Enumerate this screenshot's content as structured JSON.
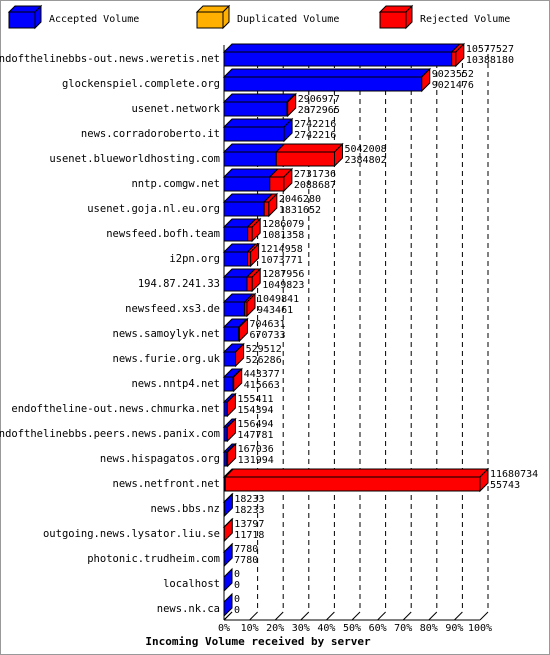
{
  "chart_data": {
    "type": "bar3d",
    "orientation": "horizontal",
    "x_label": "Incoming Volume received by server",
    "categories": [
      "endofthelinebbs-out.news.weretis.net",
      "glockenspiel.complete.org",
      "usenet.network",
      "news.corradoroberto.it",
      "usenet.blueworldhosting.com",
      "nntp.comgw.net",
      "usenet.goja.nl.eu.org",
      "newsfeed.bofh.team",
      "i2pn.org",
      "194.87.241.33",
      "newsfeed.xs3.de",
      "news.samoylyk.net",
      "news.furie.org.uk",
      "news.nntp4.net",
      "endoftheline-out.news.chmurka.net",
      "endofthelinebbs.peers.news.panix.com",
      "news.hispagatos.org",
      "news.netfront.net",
      "news.bbs.nz",
      "outgoing.news.lysator.liu.se",
      "photonic.trudheim.com",
      "localhost",
      "news.nk.ca"
    ],
    "totals": [
      10577527,
      9023552,
      2906977,
      2742216,
      5042008,
      2731736,
      2046280,
      1286079,
      1214958,
      1287956,
      1049841,
      704631,
      529512,
      443377,
      155411,
      156494,
      167036,
      11680734,
      18233,
      13797,
      7780,
      0,
      0
    ],
    "series": [
      {
        "name": "Accepted Volume",
        "color": "#0000ff",
        "values": [
          10388180,
          9021476,
          2872965,
          2742216,
          2384802,
          2088687,
          1831652,
          1081358,
          1073771,
          1049823,
          943461,
          670733,
          526286,
          415663,
          154394,
          147781,
          131994,
          55743,
          18233,
          11718,
          7780,
          0,
          0
        ]
      },
      {
        "name": "Duplicated Volume",
        "color": "#ffb000"
      },
      {
        "name": "Rejected Volume",
        "color": "#ff0000"
      }
    ],
    "xlim": [
      0,
      11680734
    ],
    "xticks": [
      {
        "value": 0,
        "label": "0%"
      },
      {
        "value": 1168073.4,
        "label": "10%"
      },
      {
        "value": 2336146.8,
        "label": "20%"
      },
      {
        "value": 3504220.2,
        "label": "30%"
      },
      {
        "value": 4672293.6,
        "label": "40%"
      },
      {
        "value": 5840367,
        "label": "50%"
      },
      {
        "value": 7008440.4,
        "label": "60%"
      },
      {
        "value": 8176513.8,
        "label": "70%"
      },
      {
        "value": 9344587.2,
        "label": "80%"
      },
      {
        "value": 10512660.6,
        "label": "90%"
      },
      {
        "value": 11680734,
        "label": "100%"
      }
    ],
    "grid": true
  }
}
